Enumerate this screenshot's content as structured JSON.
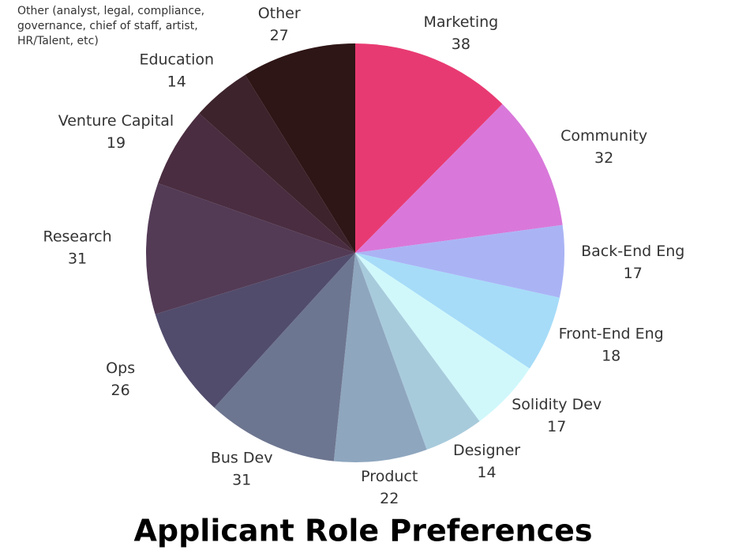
{
  "chart_data": {
    "type": "pie",
    "title": "Applicant Role Preferences",
    "annotation": "Other (analyst, legal, compliance, governance, chief of staff, artist, HR/Talent, etc)",
    "categories": [
      "Marketing",
      "Community",
      "Back-End Eng",
      "Front-End Eng",
      "Solidity Dev",
      "Designer",
      "Product",
      "Bus Dev",
      "Ops",
      "Research",
      "Venture Capital",
      "Education",
      "Other"
    ],
    "values": [
      38,
      32,
      17,
      18,
      17,
      14,
      22,
      31,
      26,
      31,
      19,
      14,
      27
    ],
    "colors": [
      "#e83a72",
      "#d978da",
      "#aab4f5",
      "#a6dcf8",
      "#d0f8fb",
      "#a8cbdc",
      "#8ea6be",
      "#6d7690",
      "#514c6c",
      "#533b56",
      "#4a2d40",
      "#3d232c",
      "#2e1516"
    ]
  }
}
